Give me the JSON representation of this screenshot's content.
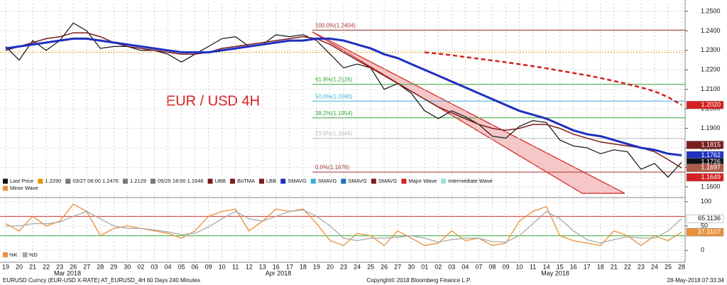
{
  "chart_data": [
    {
      "type": "line",
      "title": "EUR / USD 4H",
      "categories": [
        "19",
        "20",
        "21",
        "22",
        "23",
        "26",
        "27",
        "28",
        "29",
        "30",
        "02",
        "03",
        "04",
        "05",
        "06",
        "09",
        "10",
        "11",
        "12",
        "13",
        "16",
        "17",
        "18",
        "19",
        "20",
        "23",
        "24",
        "25",
        "26",
        "27",
        "30",
        "01",
        "02",
        "03",
        "04",
        "07",
        "08",
        "09",
        "10",
        "11",
        "14",
        "15",
        "16",
        "17",
        "18",
        "21",
        "22",
        "23",
        "24",
        "25",
        "28"
      ],
      "month_labels": [
        "Mar 2018",
        "Apr 2018",
        "May 2018"
      ],
      "ylim": [
        1.1556,
        1.254
      ],
      "yticks": [
        {
          "value": 1.16,
          "label": "1.1600"
        },
        {
          "value": 1.17,
          "label": "1.1700"
        },
        {
          "value": 1.18,
          "label": "1.1800"
        },
        {
          "value": 1.19,
          "label": "1.1900"
        },
        {
          "value": 1.2,
          "label": "1.2000"
        },
        {
          "value": 1.21,
          "label": "1.2100"
        },
        {
          "value": 1.22,
          "label": "1.2200"
        },
        {
          "value": 1.23,
          "label": "1.2300"
        },
        {
          "value": 1.24,
          "label": "1.2400"
        },
        {
          "value": 1.25,
          "label": "1.2500"
        }
      ],
      "grid": true,
      "series": [
        {
          "name": "Last Price",
          "color": "#111111",
          "width": 1.2,
          "dash": "",
          "values": [
            1.232,
            1.225,
            1.235,
            1.23,
            1.235,
            1.244,
            1.24,
            1.231,
            1.232,
            1.232,
            1.23,
            1.23,
            1.228,
            1.224,
            1.228,
            1.232,
            1.236,
            1.237,
            1.232,
            1.233,
            1.238,
            1.237,
            1.238,
            1.235,
            1.228,
            1.221,
            1.223,
            1.221,
            1.21,
            1.213,
            1.208,
            1.199,
            1.195,
            1.199,
            1.196,
            1.192,
            1.186,
            1.185,
            1.191,
            1.194,
            1.193,
            1.184,
            1.181,
            1.18,
            1.177,
            1.179,
            1.178,
            1.169,
            1.172,
            1.165,
            1.1726
          ]
        },
        {
          "name": "BoTMA",
          "color": "#7a1c1c",
          "width": 1.5,
          "dash": "",
          "values": [
            1.23,
            1.232,
            1.234,
            1.236,
            1.237,
            1.239,
            1.239,
            1.237,
            1.234,
            1.232,
            1.231,
            1.23,
            1.229,
            1.228,
            1.228,
            1.229,
            1.231,
            1.232,
            1.233,
            1.234,
            1.235,
            1.236,
            1.237,
            1.236,
            1.233,
            1.229,
            1.225,
            1.221,
            1.217,
            1.213,
            1.209,
            1.205,
            1.201,
            1.198,
            1.195,
            1.192,
            1.19,
            1.189,
            1.19,
            1.192,
            1.192,
            1.19,
            1.187,
            1.185,
            1.183,
            1.182,
            1.181,
            1.18,
            1.178,
            1.174,
            1.1697
          ]
        },
        {
          "name": "SMAVG",
          "color": "#1f2fbf",
          "width": 3,
          "dash": "",
          "values": [
            1.231,
            1.232,
            1.233,
            1.234,
            1.235,
            1.236,
            1.236,
            1.235,
            1.234,
            1.233,
            1.232,
            1.231,
            1.23,
            1.229,
            1.229,
            1.229,
            1.23,
            1.231,
            1.232,
            1.233,
            1.234,
            1.235,
            1.235,
            1.236,
            1.236,
            1.235,
            1.233,
            1.231,
            1.228,
            1.226,
            1.223,
            1.22,
            1.217,
            1.214,
            1.211,
            1.208,
            1.205,
            1.202,
            1.199,
            1.197,
            1.195,
            1.192,
            1.189,
            1.187,
            1.186,
            1.184,
            1.182,
            1.18,
            1.179,
            1.177,
            1.1762
          ]
        },
        {
          "name": "SMAVG",
          "color": "#d42020",
          "width": 2.5,
          "dash": "6 4",
          "values": [
            null,
            null,
            null,
            null,
            null,
            null,
            null,
            null,
            null,
            null,
            null,
            null,
            null,
            null,
            null,
            null,
            null,
            null,
            null,
            null,
            null,
            null,
            null,
            null,
            null,
            null,
            null,
            null,
            null,
            null,
            null,
            1.229,
            1.2283,
            1.2275,
            1.2266,
            1.2257,
            1.2248,
            1.2239,
            1.2229,
            1.2219,
            1.2208,
            1.2196,
            1.2184,
            1.2172,
            1.2158,
            1.2143,
            1.2127,
            1.211,
            1.209,
            1.206,
            1.202
          ]
        }
      ],
      "reference_line": {
        "value": 1.229,
        "color": "#e69500"
      },
      "levels": [
        {
          "value": 1.2404,
          "label": "100.0%(1.2404)",
          "color": "#a33"
        },
        {
          "value": 1.2126,
          "label": "61.8%(1.2126)",
          "color": "#3a3"
        },
        {
          "value": 1.204,
          "label": "50.0%(1.2040)",
          "color": "#3ab0d8"
        },
        {
          "value": 1.1954,
          "label": "38.2%(1.1954)",
          "color": "#3a3"
        },
        {
          "value": 1.1849,
          "label": "23.6%(1.1849)",
          "color": "#bbb"
        },
        {
          "value": 1.1676,
          "label": "0.0%(1.1676)",
          "color": "#a33"
        }
      ],
      "last_labels": [
        {
          "value": 1.202,
          "label": "1.2020",
          "color": "#d42020"
        },
        {
          "value": 1.1815,
          "label": "1.1815",
          "color": "#7a1c1c"
        },
        {
          "value": 1.1762,
          "label": "1.1762",
          "color": "#1f2fbf"
        },
        {
          "value": 1.1726,
          "label": "1.1726",
          "color": "#111111"
        },
        {
          "value": 1.1697,
          "label": "1.1697",
          "color": "#b05a4a"
        },
        {
          "value": 1.1649,
          "label": "1.1649",
          "color": "#d42020"
        }
      ],
      "legend": [
        "Last Price",
        "1.2290",
        "03/27 06:00 1.2476",
        "1.2129",
        "05/25 18:00 1.1646",
        "UBB",
        "BoTMA",
        "LBB",
        "SMAVG",
        "SMAVG",
        "SMAVG",
        "SMAVG",
        "Major Wave",
        "Intermediate Wave",
        "Minor Wave"
      ]
    },
    {
      "type": "line",
      "ylim": [
        -23,
        107
      ],
      "yticks": [
        0,
        50,
        100
      ],
      "levels": [
        {
          "value": 70,
          "color": "#c33"
        },
        {
          "value": 30,
          "color": "#3a3"
        }
      ],
      "series": [
        {
          "name": "%K",
          "color": "#e8913a",
          "width": 1.3,
          "dash": "",
          "values": [
            55,
            40,
            70,
            50,
            60,
            95,
            80,
            30,
            45,
            50,
            45,
            40,
            35,
            25,
            40,
            70,
            80,
            85,
            40,
            60,
            85,
            80,
            85,
            55,
            20,
            10,
            35,
            30,
            10,
            40,
            25,
            10,
            15,
            40,
            20,
            25,
            10,
            15,
            60,
            80,
            90,
            30,
            20,
            15,
            10,
            40,
            30,
            10,
            30,
            20,
            37.3107
          ]
        },
        {
          "name": "%D",
          "color": "#aaaaaa",
          "width": 1.3,
          "dash": "",
          "values": [
            50,
            50,
            55,
            55,
            58,
            70,
            80,
            65,
            50,
            45,
            45,
            42,
            38,
            32,
            35,
            48,
            65,
            80,
            65,
            60,
            70,
            80,
            83,
            70,
            50,
            25,
            20,
            25,
            25,
            27,
            30,
            25,
            17,
            22,
            25,
            25,
            18,
            17,
            30,
            55,
            80,
            65,
            40,
            22,
            15,
            22,
            28,
            25,
            25,
            40,
            65.1136
          ]
        }
      ],
      "last_labels": [
        {
          "value": 65.1136,
          "label": "65.1136",
          "color": "#ffffff"
        },
        {
          "value": 37.3107,
          "label": "37.3107",
          "color": "#e8913a"
        }
      ]
    }
  ],
  "footer": {
    "left": "EURUSD Curncy (EUR-USD X-RATE) AT_EURUSD_4H 60 Days 240 Minutes",
    "center": "Copyright© 2018 Bloomberg Finance L.P.",
    "right": "28-May-2018 07:33:34"
  }
}
